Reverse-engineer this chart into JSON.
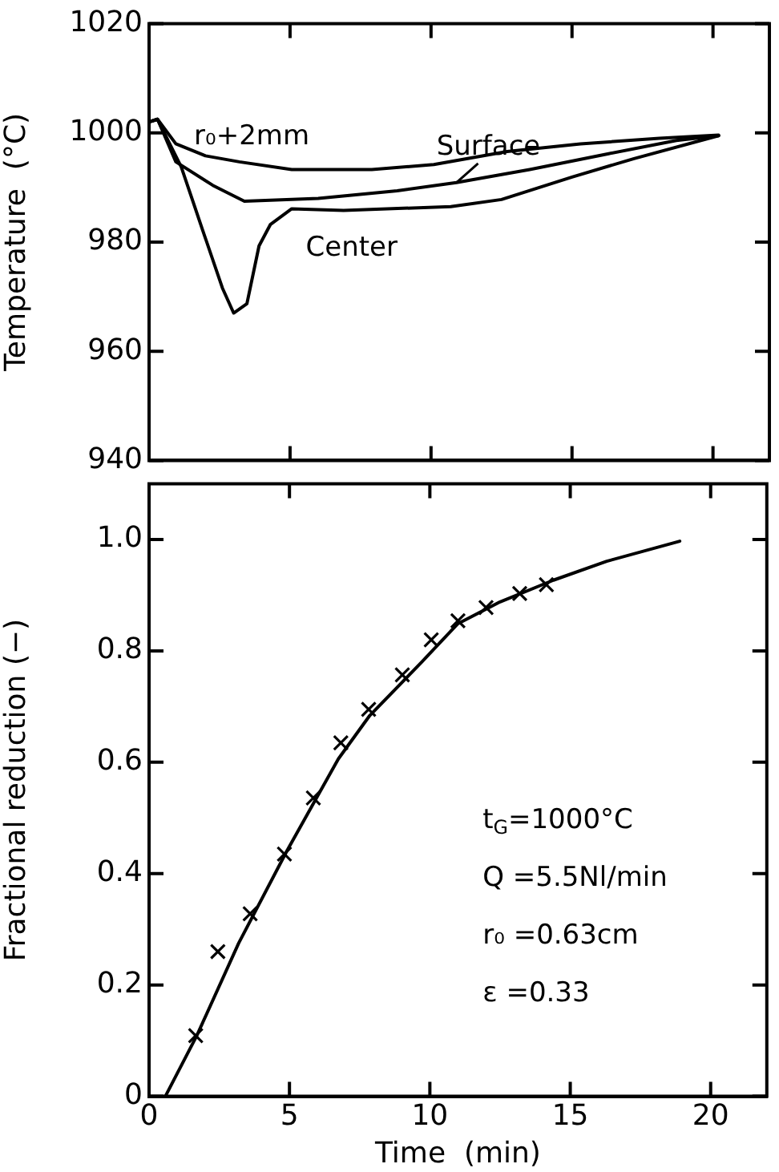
{
  "chart_data": [
    {
      "type": "line",
      "ylabel": "Temperature  (°C)",
      "xlim": [
        0,
        22
      ],
      "xticks": [
        0,
        5,
        10,
        15,
        20
      ],
      "ylim": [
        940,
        1020
      ],
      "yticks": [
        940,
        960,
        980,
        1000,
        1020
      ],
      "tick_labels": "y",
      "marker": "none",
      "series": [
        {
          "name": "r₀+2mm",
          "color": "#000000",
          "x": [
            0,
            0.3,
            0.95,
            2,
            3.2,
            5.06,
            7.9,
            10.1,
            12.7,
            15.3,
            18.1,
            20.2
          ],
          "values": [
            1002,
            1002.5,
            998,
            995.8,
            994.7,
            993.3,
            993.3,
            994.2,
            996.6,
            998,
            999,
            999.6
          ]
        },
        {
          "name": "Surface",
          "color": "#000000",
          "x": [
            0,
            0.3,
            0.95,
            2.26,
            3.38,
            6,
            8.8,
            10.9,
            13.5,
            16.3,
            18.7,
            20.2
          ],
          "values": [
            1002,
            1002.5,
            994.7,
            990.4,
            987.5,
            988,
            989.4,
            990.9,
            993.3,
            996.2,
            998.6,
            999.5
          ]
        },
        {
          "name": "Center",
          "color": "#000000",
          "x": [
            0,
            0.3,
            1.14,
            1.9,
            2.6,
            3,
            3.47,
            3.9,
            4.3,
            5.06,
            6.9,
            10.7,
            12.5,
            15,
            17.2,
            20.2
          ],
          "values": [
            1002,
            1002.5,
            993.8,
            982.2,
            971.6,
            967,
            968.7,
            979.3,
            983.2,
            986.1,
            985.8,
            986.5,
            987.8,
            991.9,
            995.3,
            999.5
          ]
        }
      ]
    },
    {
      "type": "line",
      "xlabel": "Time  (min)",
      "ylabel": "Fractional reduction (−)",
      "xlim": [
        0,
        22
      ],
      "xticks": [
        0,
        5,
        10,
        15,
        20
      ],
      "ylim": [
        0,
        1.1
      ],
      "yticks": [
        0,
        0.2,
        0.4,
        0.6,
        0.8,
        {
          "value": 1,
          "label": "1.0"
        }
      ],
      "annotations": [
        "t$_{G}$=1000°C",
        "Q =5.5Nl/min",
        "r₀ =0.63cm",
        "ε =0.33"
      ],
      "series": [
        {
          "marker": "none",
          "color": "#000000",
          "x": [
            0.58,
            1.7,
            3.19,
            4.9,
            6.74,
            7.86,
            9.73,
            11,
            12.5,
            14.4,
            16.3,
            18.9
          ],
          "values": [
            0,
            0.109,
            0.275,
            0.44,
            0.606,
            0.684,
            0.781,
            0.849,
            0.888,
            0.927,
            0.961,
            0.997
          ]
        },
        {
          "type": "scatter",
          "marker": "cross",
          "color": "#000000",
          "x": [
            1.66,
            2.45,
            3.6,
            4.82,
            5.85,
            6.83,
            7.82,
            9.02,
            10.05,
            11,
            12,
            13.2,
            14.15
          ],
          "values": [
            0.109,
            0.26,
            0.328,
            0.435,
            0.536,
            0.635,
            0.695,
            0.757,
            0.82,
            0.854,
            0.878,
            0.903,
            0.919
          ]
        }
      ]
    }
  ]
}
